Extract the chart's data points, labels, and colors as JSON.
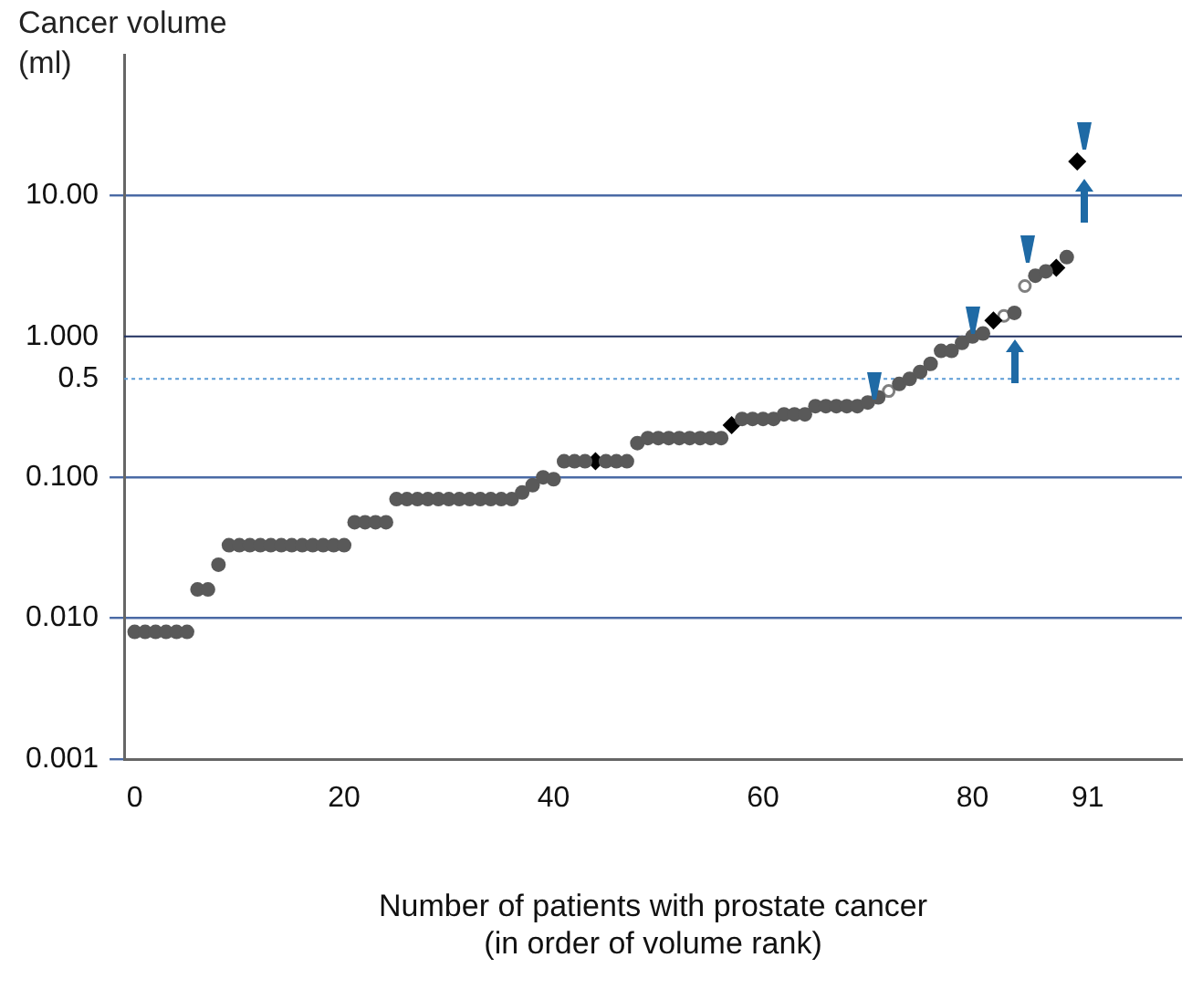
{
  "chart_data": {
    "type": "scatter",
    "xlabel": "Number of patients with prostate cancer\n(in order of volume rank)",
    "ylabel": "Cancer volume\n(ml)",
    "log": "y",
    "grid": "y",
    "xlim": [
      -1,
      100
    ],
    "xticks": [
      0,
      20,
      40,
      60,
      80,
      91
    ],
    "ylim": [
      0.001,
      100
    ],
    "yticks": [
      {
        "value": 0.001,
        "label": "0.001"
      },
      {
        "value": 0.01,
        "label": "0.010"
      },
      {
        "value": 0.1,
        "label": "0.100"
      },
      {
        "value": 0.5,
        "label": "0.5"
      },
      {
        "value": 1,
        "label": "1.000"
      },
      {
        "value": 10,
        "label": "10.00"
      }
    ],
    "ref_lines": [
      {
        "axis": "y",
        "value": 0.5,
        "color": "#5b9bd5",
        "line_style": "dotted"
      },
      {
        "axis": "y",
        "value": 1,
        "color": "#1f2f5f",
        "line_style": "solid"
      }
    ],
    "series": [
      {
        "color": "#595959",
        "marker": "circle",
        "x": [
          0,
          1,
          2,
          3,
          4,
          5,
          6,
          7,
          8,
          9,
          10,
          11,
          12,
          13,
          14,
          15,
          16,
          17,
          18,
          19,
          20,
          21,
          22,
          23,
          24,
          25,
          26,
          27,
          28,
          29,
          30,
          31,
          32,
          33,
          34,
          35,
          36,
          37,
          38,
          39,
          40,
          41,
          42,
          43,
          45,
          46,
          47,
          48,
          49,
          50,
          51,
          52,
          53,
          54,
          55,
          56,
          58,
          59,
          60,
          61,
          62,
          63,
          64,
          65,
          66,
          67,
          68,
          69,
          70,
          71,
          73,
          74,
          75,
          76,
          77,
          78,
          79,
          80,
          81,
          84,
          86,
          87,
          89
        ],
        "values": [
          0.008,
          0.008,
          0.008,
          0.008,
          0.008,
          0.008,
          0.016,
          0.016,
          0.024,
          0.033,
          0.033,
          0.033,
          0.033,
          0.033,
          0.033,
          0.033,
          0.033,
          0.033,
          0.033,
          0.033,
          0.033,
          0.048,
          0.048,
          0.048,
          0.048,
          0.07,
          0.07,
          0.07,
          0.07,
          0.07,
          0.07,
          0.07,
          0.07,
          0.07,
          0.07,
          0.07,
          0.07,
          0.078,
          0.088,
          0.1,
          0.097,
          0.13,
          0.13,
          0.13,
          0.13,
          0.13,
          0.13,
          0.175,
          0.19,
          0.19,
          0.19,
          0.19,
          0.19,
          0.19,
          0.19,
          0.19,
          0.26,
          0.26,
          0.26,
          0.26,
          0.28,
          0.28,
          0.28,
          0.32,
          0.32,
          0.32,
          0.32,
          0.32,
          0.34,
          0.37,
          0.46,
          0.5,
          0.56,
          0.64,
          0.79,
          0.79,
          0.9,
          1.0,
          1.05,
          1.47,
          2.7,
          2.9,
          3.66
        ]
      },
      {
        "color": "#000000",
        "marker": "diamond",
        "x": [
          44,
          57,
          82,
          88,
          90
        ],
        "values": [
          0.13,
          0.235,
          1.3,
          3.07,
          17.5
        ]
      },
      {
        "color": "#7f7f7f",
        "marker": "open_circle",
        "x": [
          72,
          83,
          85
        ],
        "values": [
          0.41,
          1.4,
          2.28
        ]
      }
    ]
  }
}
